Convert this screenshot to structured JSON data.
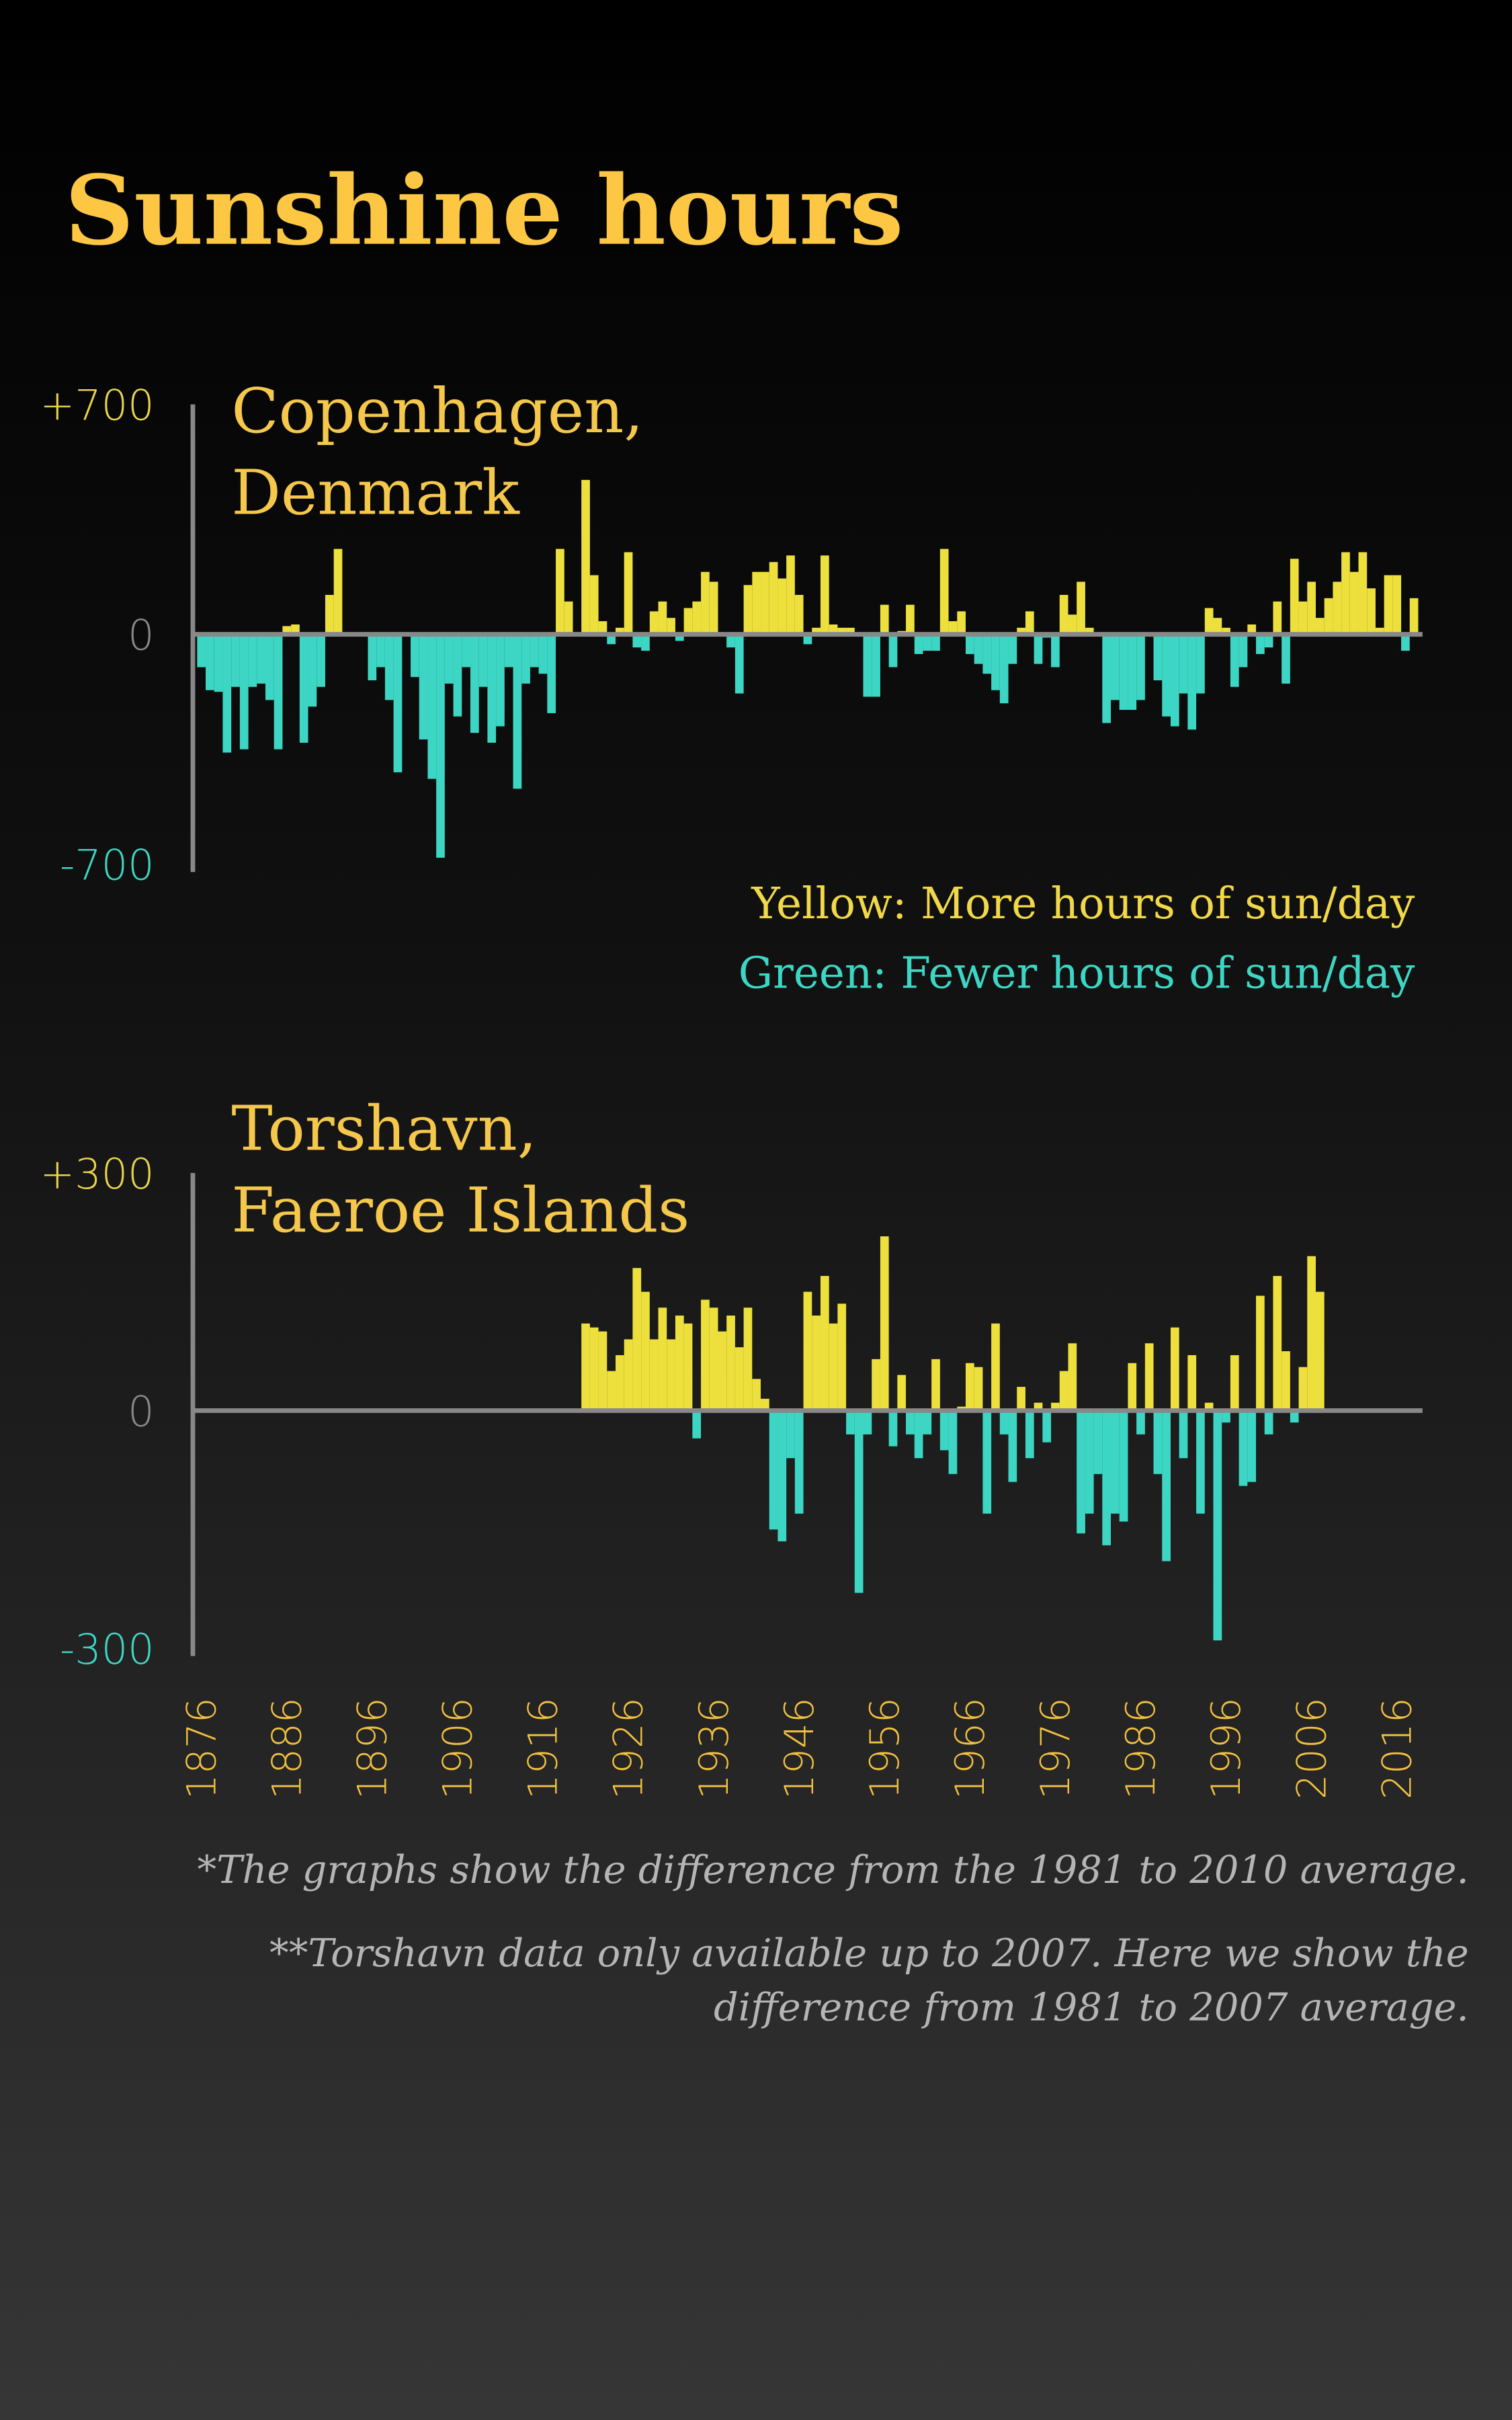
{
  "title": "Sunshine hours",
  "legend": [
    "Yellow: More hours of sun/day",
    "Green: Fewer hours of sun/day"
  ],
  "notes": [
    "*The graphs show the difference from the 1981 to 2010 average.",
    "**Torshavn data only available up to 2007. Here we show the",
    "difference from 1981 to 2007 average."
  ],
  "chart_data": [
    {
      "type": "bar",
      "title": [
        "Copenhagen,",
        "Denmark"
      ],
      "positive_color": "#ede03c",
      "negative_color": "#3dd6c4",
      "xlim": [
        1875,
        2019
      ],
      "ylim": [
        -700,
        700
      ],
      "yticks": [
        {
          "value": 700,
          "label": "+700"
        },
        0,
        -700
      ],
      "x": [
        1876,
        1877,
        1878,
        1879,
        1880,
        1881,
        1882,
        1883,
        1884,
        1885,
        1886,
        1887,
        1888,
        1889,
        1890,
        1891,
        1892,
        1893,
        1894,
        1895,
        1896,
        1897,
        1898,
        1899,
        1900,
        1901,
        1902,
        1903,
        1904,
        1905,
        1906,
        1907,
        1908,
        1909,
        1910,
        1911,
        1912,
        1913,
        1914,
        1915,
        1916,
        1917,
        1918,
        1919,
        1920,
        1921,
        1922,
        1923,
        1924,
        1925,
        1926,
        1927,
        1928,
        1929,
        1930,
        1931,
        1932,
        1933,
        1934,
        1935,
        1936,
        1937,
        1938,
        1939,
        1940,
        1941,
        1942,
        1943,
        1944,
        1945,
        1946,
        1947,
        1948,
        1949,
        1950,
        1951,
        1952,
        1953,
        1954,
        1955,
        1956,
        1957,
        1958,
        1959,
        1960,
        1961,
        1962,
        1963,
        1964,
        1965,
        1966,
        1967,
        1968,
        1969,
        1970,
        1971,
        1972,
        1973,
        1974,
        1975,
        1976,
        1977,
        1978,
        1979,
        1980,
        1981,
        1982,
        1983,
        1984,
        1985,
        1986,
        1987,
        1988,
        1989,
        1990,
        1991,
        1992,
        1993,
        1994,
        1995,
        1996,
        1997,
        1998,
        1999,
        2000,
        2001,
        2002,
        2003,
        2004,
        2005,
        2006,
        2007,
        2008,
        2009,
        2010,
        2011,
        2012,
        2013,
        2014,
        2015,
        2016,
        2017,
        2018
      ],
      "values": [
        -100,
        -170,
        -175,
        -360,
        -160,
        -350,
        -160,
        -150,
        -200,
        -350,
        25,
        30,
        -330,
        -220,
        -160,
        120,
        260,
        5,
        -5,
        0,
        -140,
        -100,
        -200,
        -420,
        5,
        -130,
        -320,
        -440,
        -680,
        -150,
        -250,
        -100,
        -300,
        -160,
        -330,
        -280,
        -100,
        -470,
        -150,
        -100,
        -120,
        -240,
        260,
        100,
        5,
        470,
        180,
        40,
        -30,
        20,
        250,
        -40,
        -50,
        70,
        100,
        50,
        -20,
        80,
        100,
        190,
        160,
        5,
        -40,
        -180,
        150,
        190,
        190,
        220,
        170,
        240,
        120,
        -30,
        20,
        240,
        30,
        20,
        20,
        5,
        -190,
        -190,
        90,
        -100,
        10,
        90,
        -60,
        -50,
        -50,
        260,
        40,
        70,
        -60,
        -90,
        -120,
        -170,
        -210,
        -90,
        20,
        70,
        -90,
        -10,
        -100,
        120,
        60,
        160,
        20,
        -5,
        -270,
        -200,
        -230,
        -230,
        -200,
        0,
        -140,
        -250,
        -280,
        -180,
        -290,
        -180,
        80,
        50,
        20,
        -160,
        -100,
        30,
        -60,
        -40,
        100,
        -150,
        230,
        100,
        160,
        50,
        110,
        160,
        250,
        190,
        250,
        140,
        20,
        180,
        180,
        -50,
        110
      ]
    },
    {
      "type": "bar",
      "title": [
        "Torshavn,",
        "Faeroe Islands"
      ],
      "positive_color": "#ede03c",
      "negative_color": "#3dd6c4",
      "xlim": [
        1875,
        2019
      ],
      "ylim": [
        -300,
        300
      ],
      "yticks": [
        {
          "value": 300,
          "label": "+300"
        },
        0,
        -300
      ],
      "xticks": [
        1876,
        1886,
        1896,
        1906,
        1916,
        1926,
        1936,
        1946,
        1956,
        1966,
        1976,
        1986,
        1996,
        2006,
        2016
      ],
      "x": [
        1921,
        1922,
        1923,
        1924,
        1925,
        1926,
        1927,
        1928,
        1929,
        1930,
        1931,
        1932,
        1933,
        1934,
        1935,
        1936,
        1937,
        1938,
        1939,
        1940,
        1941,
        1942,
        1943,
        1944,
        1945,
        1946,
        1947,
        1948,
        1949,
        1950,
        1951,
        1952,
        1953,
        1954,
        1955,
        1956,
        1957,
        1958,
        1959,
        1960,
        1961,
        1962,
        1963,
        1964,
        1965,
        1966,
        1967,
        1968,
        1969,
        1970,
        1971,
        1972,
        1973,
        1974,
        1975,
        1976,
        1977,
        1978,
        1979,
        1980,
        1981,
        1982,
        1983,
        1984,
        1985,
        1986,
        1987,
        1988,
        1989,
        1990,
        1991,
        1992,
        1993,
        1994,
        1995,
        1996,
        1997,
        1998,
        1999,
        2000,
        2001,
        2002,
        2003,
        2004,
        2005,
        2006,
        2007
      ],
      "values": [
        110,
        105,
        100,
        50,
        70,
        90,
        180,
        150,
        90,
        130,
        90,
        120,
        110,
        -35,
        140,
        130,
        100,
        120,
        80,
        130,
        40,
        15,
        -150,
        -165,
        -60,
        -130,
        150,
        120,
        170,
        110,
        135,
        -30,
        -230,
        -30,
        65,
        220,
        -45,
        45,
        -30,
        -60,
        -30,
        65,
        -50,
        -80,
        5,
        60,
        55,
        -130,
        110,
        -30,
        -90,
        30,
        -60,
        10,
        -40,
        10,
        50,
        85,
        -155,
        -130,
        -80,
        -170,
        -130,
        -140,
        60,
        -30,
        85,
        -80,
        -190,
        105,
        -60,
        70,
        -130,
        10,
        -290,
        -15,
        70,
        -95,
        -90,
        145,
        -30,
        170,
        75,
        -15,
        55,
        195,
        150
      ]
    }
  ]
}
